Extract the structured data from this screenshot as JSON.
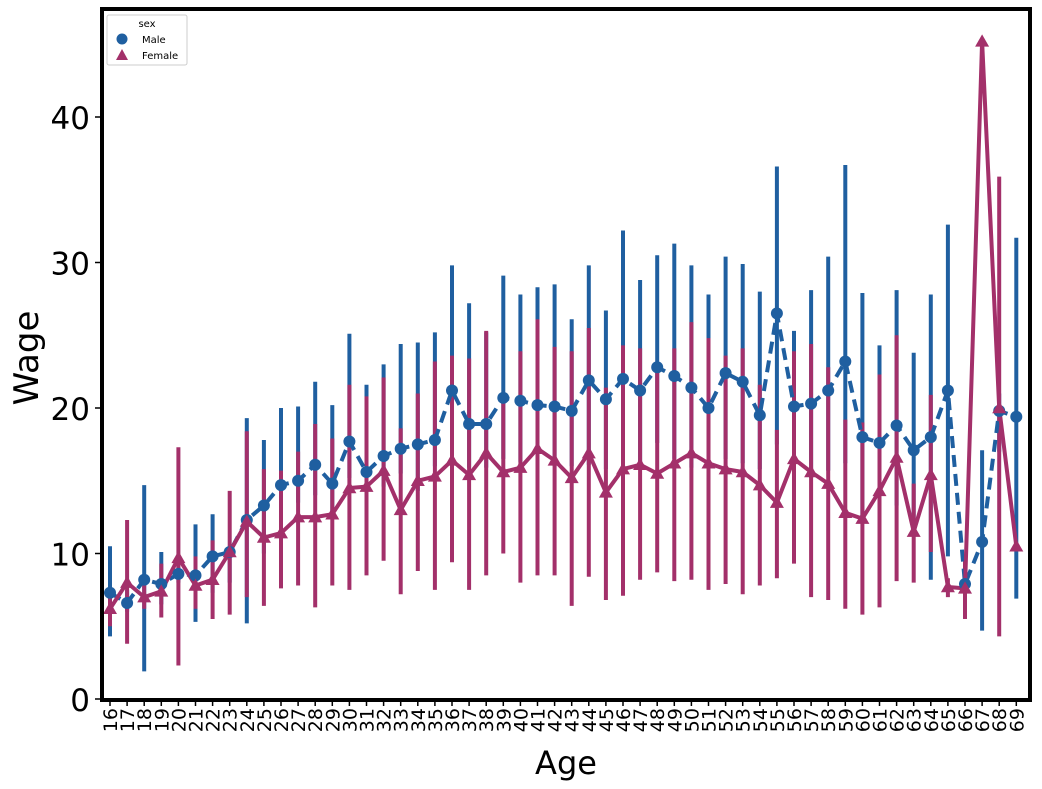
{
  "chart_data": {
    "type": "line",
    "xlabel": "Age",
    "ylabel": "Wage",
    "ylim": [
      0,
      47
    ],
    "yticks": [
      "0",
      "10",
      "20",
      "30",
      "40"
    ],
    "categories": [
      "16",
      "17",
      "18",
      "19",
      "20",
      "21",
      "22",
      "23",
      "24",
      "25",
      "26",
      "27",
      "28",
      "29",
      "30",
      "31",
      "32",
      "33",
      "34",
      "35",
      "36",
      "37",
      "38",
      "39",
      "40",
      "41",
      "42",
      "43",
      "44",
      "45",
      "46",
      "47",
      "48",
      "49",
      "50",
      "51",
      "52",
      "53",
      "54",
      "55",
      "56",
      "57",
      "58",
      "59",
      "60",
      "61",
      "62",
      "63",
      "64",
      "65",
      "66",
      "67",
      "68",
      "69"
    ],
    "legend": {
      "title": "sex",
      "position": "top-left"
    },
    "series": [
      {
        "name": "Male",
        "color": "#1f5fa0",
        "marker": "circle",
        "linestyle": "dashed",
        "values": [
          7.3,
          6.6,
          8.2,
          7.9,
          8.6,
          8.5,
          9.8,
          10.1,
          12.3,
          13.3,
          14.7,
          15.0,
          16.1,
          14.8,
          17.7,
          15.6,
          16.7,
          17.2,
          17.5,
          17.8,
          21.2,
          18.9,
          18.9,
          20.7,
          20.5,
          20.2,
          20.1,
          19.8,
          21.9,
          20.6,
          22.0,
          21.2,
          22.8,
          22.2,
          21.4,
          20.0,
          22.4,
          21.8,
          19.5,
          26.5,
          20.1,
          20.3,
          21.2,
          23.2,
          18.0,
          17.6,
          18.8,
          17.1,
          18.0,
          21.2,
          7.9,
          10.8,
          19.8,
          19.4
        ],
        "ci_low": [
          4.3,
          6.0,
          1.9,
          6.5,
          8.0,
          5.3,
          7.3,
          8.0,
          5.2,
          10.0,
          13.0,
          13.5,
          14.0,
          12.5,
          15.2,
          12.7,
          14.6,
          15.5,
          14.3,
          16.0,
          15.9,
          15.9,
          15.9,
          16.5,
          16.3,
          16.2,
          16.0,
          16.0,
          16.1,
          15.8,
          16.5,
          16.0,
          17.6,
          16.5,
          15.9,
          16.2,
          16.5,
          16.2,
          15.8,
          17.5,
          15.7,
          15.2,
          15.7,
          16.2,
          12.5,
          12.6,
          13.3,
          11.7,
          8.2,
          9.8,
          6.5,
          4.7,
          17.0,
          6.9
        ],
        "ci_high": [
          10.5,
          7.5,
          14.7,
          10.1,
          9.1,
          12.0,
          12.7,
          10.3,
          19.3,
          17.8,
          20.0,
          20.1,
          21.8,
          20.2,
          25.1,
          21.6,
          23.0,
          24.4,
          24.5,
          25.2,
          29.8,
          27.2,
          25.2,
          29.1,
          27.8,
          28.3,
          28.5,
          26.1,
          29.8,
          26.7,
          32.2,
          28.8,
          30.5,
          31.3,
          29.8,
          27.8,
          30.4,
          29.9,
          28.0,
          36.6,
          25.3,
          28.1,
          30.4,
          36.7,
          27.9,
          24.3,
          28.1,
          23.8,
          27.8,
          32.6,
          9.6,
          17.1,
          21.0,
          31.7
        ]
      },
      {
        "name": "Female",
        "color": "#a3306a",
        "marker": "triangle",
        "linestyle": "solid",
        "values": [
          6.2,
          8.0,
          7.0,
          7.4,
          9.7,
          7.8,
          8.2,
          10.1,
          12.2,
          11.1,
          11.4,
          12.5,
          12.5,
          12.7,
          14.5,
          14.6,
          15.7,
          13.0,
          15.0,
          15.3,
          16.4,
          15.4,
          16.9,
          15.6,
          15.9,
          17.2,
          16.4,
          15.2,
          16.9,
          14.2,
          15.8,
          16.1,
          15.5,
          16.2,
          16.9,
          16.2,
          15.8,
          15.6,
          14.7,
          13.5,
          16.5,
          15.6,
          14.8,
          12.8,
          12.4,
          14.3,
          16.6,
          11.5,
          15.4,
          7.7,
          7.6,
          45.2,
          20.0,
          10.5
        ],
        "ci_low": [
          5.0,
          3.8,
          6.2,
          5.6,
          2.3,
          6.2,
          5.5,
          5.8,
          7.0,
          6.4,
          7.6,
          7.8,
          6.3,
          7.8,
          7.5,
          8.5,
          9.5,
          7.2,
          8.8,
          7.5,
          9.4,
          7.5,
          8.5,
          10.0,
          8.0,
          8.5,
          8.5,
          6.4,
          8.4,
          6.8,
          7.1,
          8.2,
          8.7,
          8.1,
          8.2,
          7.5,
          7.9,
          7.2,
          7.8,
          8.3,
          9.3,
          7.0,
          6.8,
          6.2,
          5.8,
          6.3,
          8.1,
          8.0,
          10.1,
          7.0,
          5.5,
          45.2,
          4.3,
          10.5
        ],
        "ci_high": [
          7.6,
          12.3,
          8.0,
          9.3,
          17.3,
          9.8,
          10.9,
          14.3,
          18.4,
          15.8,
          15.7,
          17.0,
          18.9,
          17.9,
          21.6,
          20.8,
          22.1,
          18.6,
          21.0,
          23.2,
          23.6,
          23.4,
          25.3,
          21.0,
          23.9,
          26.1,
          24.2,
          23.9,
          25.5,
          21.4,
          24.3,
          24.1,
          22.5,
          24.1,
          25.9,
          24.8,
          23.6,
          24.1,
          21.6,
          18.5,
          23.9,
          24.4,
          22.8,
          19.2,
          19.0,
          22.3,
          25.0,
          14.8,
          20.9,
          8.3,
          9.8,
          45.2,
          35.9,
          10.5
        ]
      }
    ]
  }
}
